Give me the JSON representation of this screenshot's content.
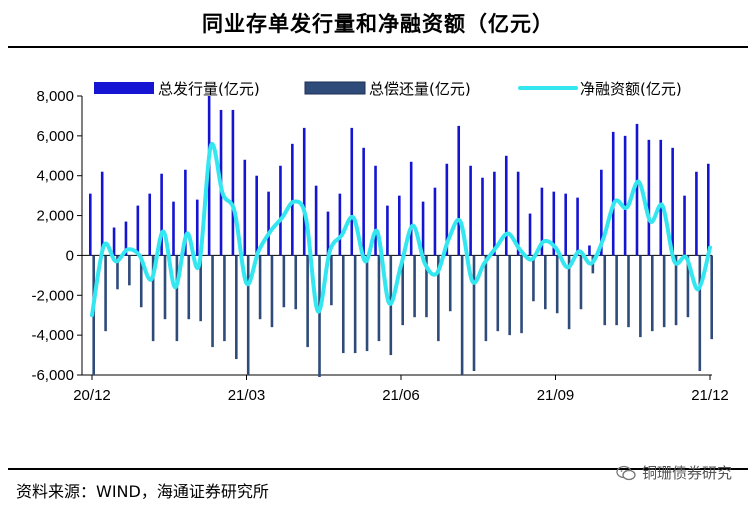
{
  "title": "同业存单发行量和净融资额（亿元）",
  "source": "资料来源：WIND，海通证券研究所",
  "watermark": "铜珊债券研究",
  "chart_data": {
    "type": "bar+line",
    "title": "同业存单发行量和净融资额（亿元）",
    "legend": [
      {
        "name": "总发行量(亿元)",
        "color": "#1414d2",
        "kind": "bar"
      },
      {
        "name": "总偿还量(亿元)",
        "color": "#2f4b7a",
        "kind": "bar"
      },
      {
        "name": "净融资额(亿元)",
        "color": "#33e6f0",
        "kind": "line"
      }
    ],
    "ylim": [
      -6000,
      8000
    ],
    "yticks": [
      8000,
      6000,
      4000,
      2000,
      0,
      -2000,
      -4000,
      -6000
    ],
    "ytick_labels": [
      "8,000",
      "6,000",
      "4,000",
      "2,000",
      "0",
      "-2,000",
      "-4,000",
      "-6,000"
    ],
    "xtick_labels": [
      {
        "label": "20/12",
        "index": 0
      },
      {
        "label": "21/03",
        "index": 13
      },
      {
        "label": "21/06",
        "index": 26
      },
      {
        "label": "21/09",
        "index": 39
      },
      {
        "label": "21/12",
        "index": 52
      }
    ],
    "n_periods": 53,
    "series": [
      {
        "name": "总发行量(亿元)",
        "values": [
          3100,
          4200,
          1400,
          1700,
          2500,
          3100,
          4100,
          2700,
          4300,
          2800,
          8000,
          7300,
          7300,
          4800,
          4000,
          3200,
          4500,
          5600,
          6400,
          3500,
          2200,
          3100,
          6400,
          5400,
          4500,
          2500,
          3000,
          4700,
          2700,
          3400,
          4600,
          6500,
          4500,
          3900,
          4200,
          5000,
          4200,
          2100,
          3400,
          3200,
          3100,
          2900,
          500,
          4300,
          6200,
          6000,
          6600,
          5800,
          5800,
          5400,
          3000,
          4200,
          4600
        ]
      },
      {
        "name": "总偿还量(亿元)",
        "values": [
          -6000,
          -3800,
          -1700,
          -1500,
          -2600,
          -4300,
          -3200,
          -4300,
          -3200,
          -3300,
          -4600,
          -4300,
          -5200,
          -6000,
          -3200,
          -3600,
          -2600,
          -2700,
          -4600,
          -6100,
          -2500,
          -4900,
          -4900,
          -4800,
          -4300,
          -5000,
          -3500,
          -3100,
          -3100,
          -4300,
          -2800,
          -6000,
          -5800,
          -4300,
          -3800,
          -4000,
          -3900,
          -2300,
          -2700,
          -2900,
          -3700,
          -2700,
          -900,
          -3500,
          -3500,
          -3600,
          -4100,
          -3800,
          -3600,
          -3500,
          -3100,
          -5800,
          -4200
        ]
      },
      {
        "name": "净融资额(亿元)",
        "values": [
          -3000,
          500,
          -300,
          300,
          0,
          -1200,
          1200,
          -1600,
          1100,
          -500,
          5500,
          3100,
          2200,
          -1400,
          200,
          1200,
          1900,
          2700,
          1900,
          -2800,
          200,
          1000,
          1900,
          -300,
          1200,
          -2400,
          -500,
          1500,
          -400,
          -900,
          800,
          1700,
          -1300,
          -400,
          400,
          1100,
          300,
          -200,
          700,
          400,
          -600,
          200,
          -400,
          800,
          2700,
          2400,
          3700,
          1700,
          2500,
          -300,
          -100,
          -1700,
          400
        ]
      }
    ]
  }
}
